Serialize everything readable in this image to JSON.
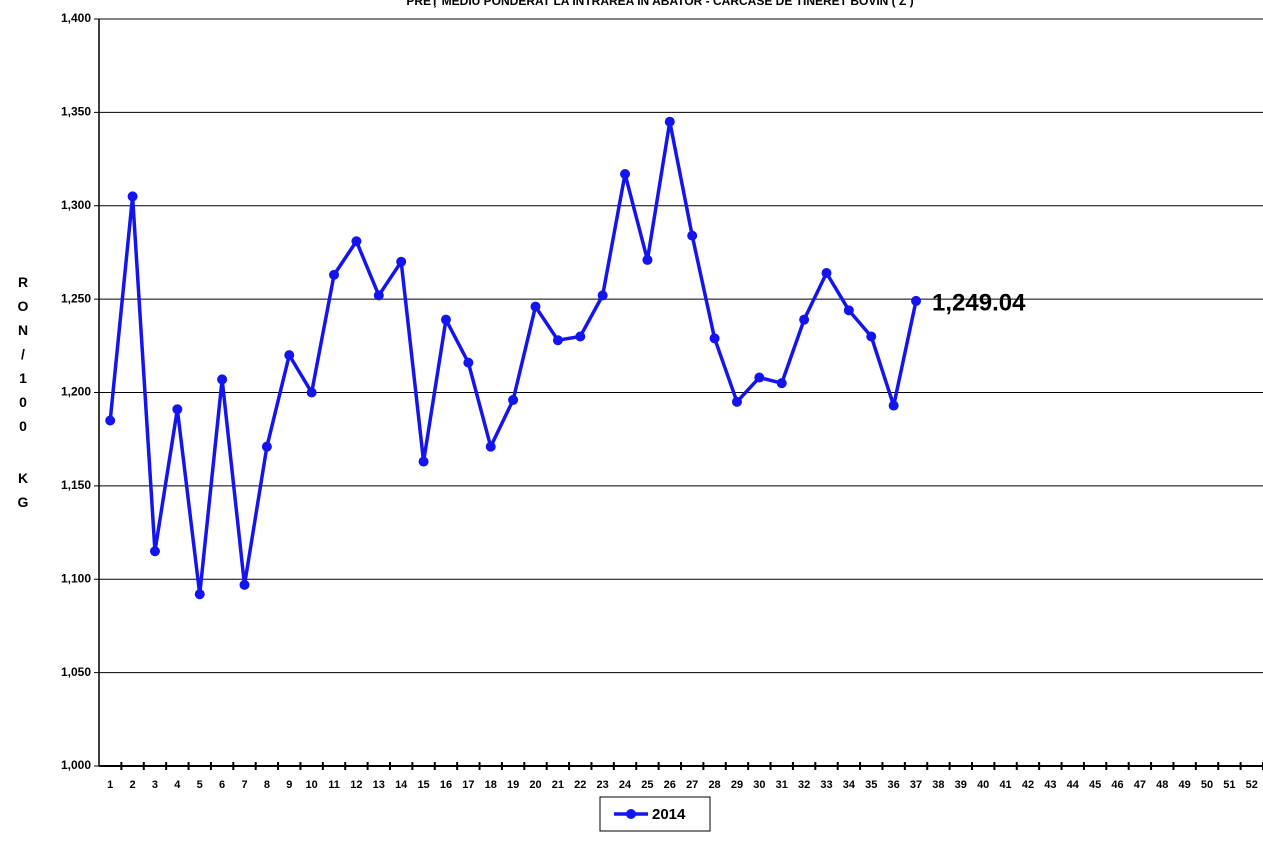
{
  "chart_data": {
    "type": "line",
    "title": "PREŢ MEDIU PONDERAT LA INTRAREA IN ABATOR - CARCASE DE TINERET BOVIN ( Z )",
    "y_label": "RON/100 KG",
    "categories": [
      "1",
      "2",
      "3",
      "4",
      "5",
      "6",
      "7",
      "8",
      "9",
      "10",
      "11",
      "12",
      "13",
      "14",
      "15",
      "16",
      "17",
      "18",
      "19",
      "20",
      "21",
      "22",
      "23",
      "24",
      "25",
      "26",
      "27",
      "28",
      "29",
      "30",
      "31",
      "32",
      "33",
      "34",
      "35",
      "36",
      "37",
      "38",
      "39",
      "40",
      "41",
      "42",
      "43",
      "44",
      "45",
      "46",
      "47",
      "48",
      "49",
      "50",
      "51",
      "52"
    ],
    "series": [
      {
        "name": "2014",
        "color": "#1414f0",
        "values": [
          1185,
          1305,
          1115,
          1191,
          1092,
          1207,
          1097,
          1171,
          1220,
          1200,
          1263,
          1281,
          1252,
          1270,
          1163,
          1239,
          1216,
          1171,
          1196,
          1246,
          1228,
          1230,
          1252,
          1317,
          1271,
          1345,
          1284,
          1229,
          1195,
          1208,
          1205,
          1239,
          1264,
          1244,
          1230,
          1193,
          1249.04,
          null,
          null,
          null,
          null,
          null,
          null,
          null,
          null,
          null,
          null,
          null,
          null,
          null,
          null,
          null
        ],
        "value_labels": [
          null,
          null,
          null,
          null,
          null,
          null,
          null,
          null,
          null,
          null,
          null,
          null,
          null,
          null,
          null,
          null,
          null,
          null,
          null,
          null,
          null,
          null,
          null,
          null,
          null,
          null,
          null,
          null,
          null,
          null,
          null,
          null,
          null,
          null,
          null,
          null,
          "1,249.04",
          null,
          null,
          null,
          null,
          null,
          null,
          null,
          null,
          null,
          null,
          null,
          null,
          null,
          null,
          null
        ]
      }
    ],
    "ylim": [
      1000,
      1400
    ],
    "yticks": [
      {
        "value": 1000,
        "label": "1,000"
      },
      {
        "value": 1050,
        "label": "1,050"
      },
      {
        "value": 1100,
        "label": "1,100"
      },
      {
        "value": 1150,
        "label": "1,150"
      },
      {
        "value": 1200,
        "label": "1,200"
      },
      {
        "value": 1250,
        "label": "1,250"
      },
      {
        "value": 1300,
        "label": "1,300"
      },
      {
        "value": 1350,
        "label": "1,350"
      },
      {
        "value": 1400,
        "label": "1,400"
      }
    ],
    "grid": true
  }
}
